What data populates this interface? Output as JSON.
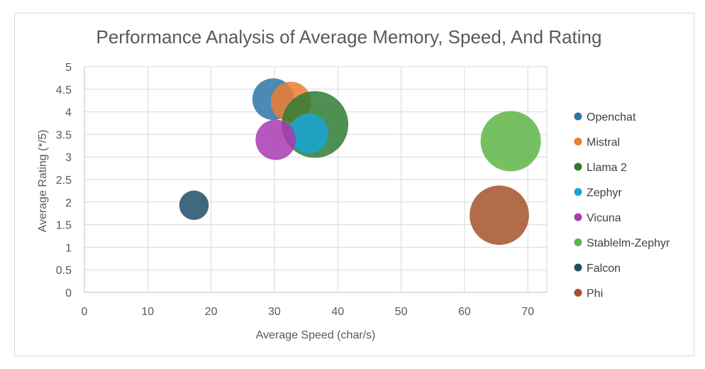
{
  "chart_data": {
    "type": "bubble",
    "title": "Performance Analysis of Average Memory, Speed, And Rating",
    "xlabel": "Average Speed (char/s)",
    "ylabel": "Average Rating (*/5)",
    "xlim": [
      0,
      73
    ],
    "ylim": [
      0,
      5
    ],
    "x_ticks": [
      "0",
      "10",
      "20",
      "30",
      "40",
      "50",
      "60",
      "70"
    ],
    "y_ticks": [
      "0",
      "0.5",
      "1",
      "1.5",
      "2",
      "2.5",
      "3",
      "3.5",
      "4",
      "4.5",
      "5"
    ],
    "x_tick_values": [
      0,
      10,
      20,
      30,
      40,
      50,
      60,
      70
    ],
    "y_tick_values": [
      0,
      0.5,
      1,
      1.5,
      2,
      2.5,
      3,
      3.5,
      4,
      4.5,
      5
    ],
    "grid": true,
    "legend_position": "right",
    "series": [
      {
        "name": "Openchat",
        "x": 29.8,
        "y": 4.28,
        "size": 3.2,
        "color": "#2e75a6"
      },
      {
        "name": "Mistral",
        "x": 32.6,
        "y": 4.22,
        "size": 3.0,
        "color": "#ed7d31"
      },
      {
        "name": "Llama 2",
        "x": 36.4,
        "y": 3.72,
        "size": 8.2,
        "color": "#2e7d32"
      },
      {
        "name": "Zephyr",
        "x": 35.4,
        "y": 3.52,
        "size": 2.9,
        "color": "#1aa5d6"
      },
      {
        "name": "Vicuna",
        "x": 30.2,
        "y": 3.38,
        "size": 3.0,
        "color": "#a93ab3"
      },
      {
        "name": "Stablelm-Zephyr",
        "x": 67.3,
        "y": 3.35,
        "size": 6.7,
        "color": "#5eb546"
      },
      {
        "name": "Falcon",
        "x": 17.3,
        "y": 1.93,
        "size": 1.6,
        "color": "#1f4e67"
      },
      {
        "name": "Phi",
        "x": 65.5,
        "y": 1.71,
        "size": 6.5,
        "color": "#a5522a"
      }
    ]
  }
}
